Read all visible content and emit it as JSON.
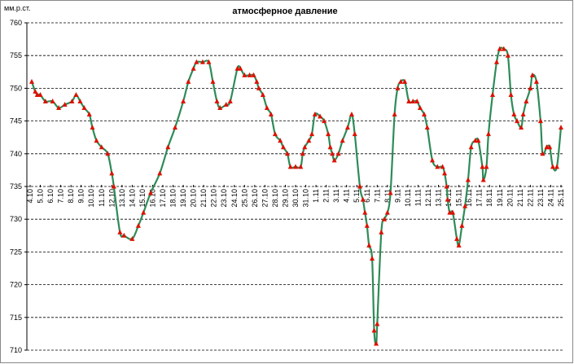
{
  "chart_data": {
    "type": "line",
    "title": "атмосферное давление",
    "y_label": "мм.р.ст.",
    "x": [
      0.16,
      0.5,
      0.7,
      1.0,
      1.5,
      2.2,
      2.8,
      3.4,
      4.1,
      4.5,
      4.9,
      5.3,
      5.8,
      6.1,
      6.5,
      7.0,
      7.6,
      8.0,
      8.2,
      8.8,
      9.2,
      10.0,
      10.6,
      11.1,
      11.8,
      12.7,
      13.5,
      14.2,
      15.0,
      15.5,
      16.0,
      16.3,
      16.9,
      17.5,
      17.9,
      18.3,
      18.6,
      19.2,
      19.6,
      20.3,
      20.6,
      21.0,
      21.5,
      21.9,
      22.2,
      22.4,
      22.8,
      23.2,
      23.6,
      24.0,
      24.5,
      24.8,
      25.2,
      25.5,
      26.0,
      26.5,
      26.7,
      26.9,
      27.3,
      27.6,
      27.9,
      28.4,
      28.8,
      29.2,
      29.4,
      29.6,
      29.8,
      30.2,
      30.6,
      31.1,
      31.5,
      31.8,
      32.3,
      32.6,
      32.8,
      33.0,
      33.2,
      33.5,
      33.7,
      33.9,
      34.0,
      34.4,
      34.7,
      35.0,
      35.3,
      35.7,
      36.0,
      36.3,
      36.7,
      37.1,
      37.5,
      37.9,
      38.2,
      38.6,
      38.9,
      39.4,
      39.9,
      40.4,
      40.6,
      40.8,
      40.9,
      41.1,
      41.4,
      41.8,
      42.0,
      42.3,
      42.6,
      42.9,
      43.2,
      43.6,
      43.9,
      44.3,
      44.4,
      44.7,
      44.9,
      45.3,
      45.7,
      46.0,
      46.4,
      46.8,
      47.1,
      47.4,
      47.7,
      48.1,
      48.3,
      48.6,
      49.0,
      49.2,
      49.6,
      50.0,
      50.2,
      50.6,
      50.9,
      51.2,
      51.6,
      52.0
    ],
    "values": [
      751,
      749.5,
      749,
      749,
      748,
      748,
      747,
      747.5,
      748,
      749,
      748,
      747,
      746,
      744,
      742,
      741,
      740,
      737,
      735,
      728,
      727.5,
      727,
      729,
      731,
      734,
      737,
      741,
      744,
      748,
      751,
      753,
      754,
      754,
      754,
      751,
      748,
      747,
      747.5,
      748,
      753,
      753,
      752,
      752,
      752,
      751,
      750,
      749,
      747,
      746,
      743,
      742,
      741,
      740,
      738,
      738,
      738,
      740,
      741,
      742,
      743,
      746,
      745.7,
      745,
      743,
      741,
      740,
      739,
      740,
      742,
      744,
      746,
      743,
      735,
      733,
      731,
      729,
      726,
      724,
      713,
      711,
      714,
      728,
      730,
      731,
      734,
      746,
      750,
      751,
      751,
      748,
      748,
      748,
      747,
      746,
      744,
      739,
      738,
      738,
      737,
      735,
      733,
      731,
      731,
      727,
      726,
      729,
      732,
      736,
      741,
      742,
      742,
      738,
      736,
      738,
      743,
      749,
      754,
      756,
      756,
      755,
      749,
      746,
      745,
      744,
      746,
      748,
      750,
      752,
      751,
      745,
      740,
      741,
      741,
      738,
      738,
      744
    ],
    "color": "#2e8b57",
    "marker": "triangle",
    "marker_color": "#dd1100",
    "xlim": [
      0,
      52
    ],
    "xticks": [
      {
        "value": 0,
        "label": "4.10"
      },
      {
        "value": 1,
        "label": "5.10"
      },
      {
        "value": 2,
        "label": "6.10"
      },
      {
        "value": 3,
        "label": "7.10"
      },
      {
        "value": 4,
        "label": "8.10"
      },
      {
        "value": 5,
        "label": "9.10"
      },
      {
        "value": 6,
        "label": "10.10"
      },
      {
        "value": 7,
        "label": "11.10"
      },
      {
        "value": 8,
        "label": "12.10"
      },
      {
        "value": 9,
        "label": "13.10"
      },
      {
        "value": 10,
        "label": "14.10"
      },
      {
        "value": 11,
        "label": "15.10"
      },
      {
        "value": 12,
        "label": "16.10"
      },
      {
        "value": 13,
        "label": "17.10"
      },
      {
        "value": 14,
        "label": "18.10"
      },
      {
        "value": 15,
        "label": "19.10"
      },
      {
        "value": 16,
        "label": "20.10"
      },
      {
        "value": 17,
        "label": "21.10"
      },
      {
        "value": 18,
        "label": "22.10"
      },
      {
        "value": 19,
        "label": "23.10"
      },
      {
        "value": 20,
        "label": "24.10"
      },
      {
        "value": 21,
        "label": "25.10"
      },
      {
        "value": 22,
        "label": "26.10"
      },
      {
        "value": 23,
        "label": "27.10"
      },
      {
        "value": 24,
        "label": "28.10"
      },
      {
        "value": 25,
        "label": "29.10"
      },
      {
        "value": 26,
        "label": "30.10"
      },
      {
        "value": 27,
        "label": "31.10"
      },
      {
        "value": 28,
        "label": "1.11"
      },
      {
        "value": 29,
        "label": "2.11"
      },
      {
        "value": 30,
        "label": "3.11"
      },
      {
        "value": 31,
        "label": "4.11"
      },
      {
        "value": 32,
        "label": "5.11"
      },
      {
        "value": 33,
        "label": "6.11"
      },
      {
        "value": 34,
        "label": "7.11"
      },
      {
        "value": 35,
        "label": "8.11"
      },
      {
        "value": 36,
        "label": "9.11"
      },
      {
        "value": 37,
        "label": "10.11"
      },
      {
        "value": 38,
        "label": "11.11"
      },
      {
        "value": 39,
        "label": "12.11"
      },
      {
        "value": 40,
        "label": "13.11"
      },
      {
        "value": 41,
        "label": "14.11"
      },
      {
        "value": 42,
        "label": "15.11"
      },
      {
        "value": 43,
        "label": "16.11"
      },
      {
        "value": 44,
        "label": "17.11"
      },
      {
        "value": 45,
        "label": "18.11"
      },
      {
        "value": 46,
        "label": "19.11"
      },
      {
        "value": 47,
        "label": "20.11"
      },
      {
        "value": 48,
        "label": "21.11"
      },
      {
        "value": 49,
        "label": "22.11"
      },
      {
        "value": 50,
        "label": "23.11"
      },
      {
        "value": 51,
        "label": "24.11"
      },
      {
        "value": 52,
        "label": "25.11"
      }
    ],
    "ylim": [
      710,
      760
    ],
    "yticks": [
      710,
      715,
      720,
      725,
      730,
      735,
      740,
      745,
      750,
      755,
      760
    ],
    "grid": true
  }
}
